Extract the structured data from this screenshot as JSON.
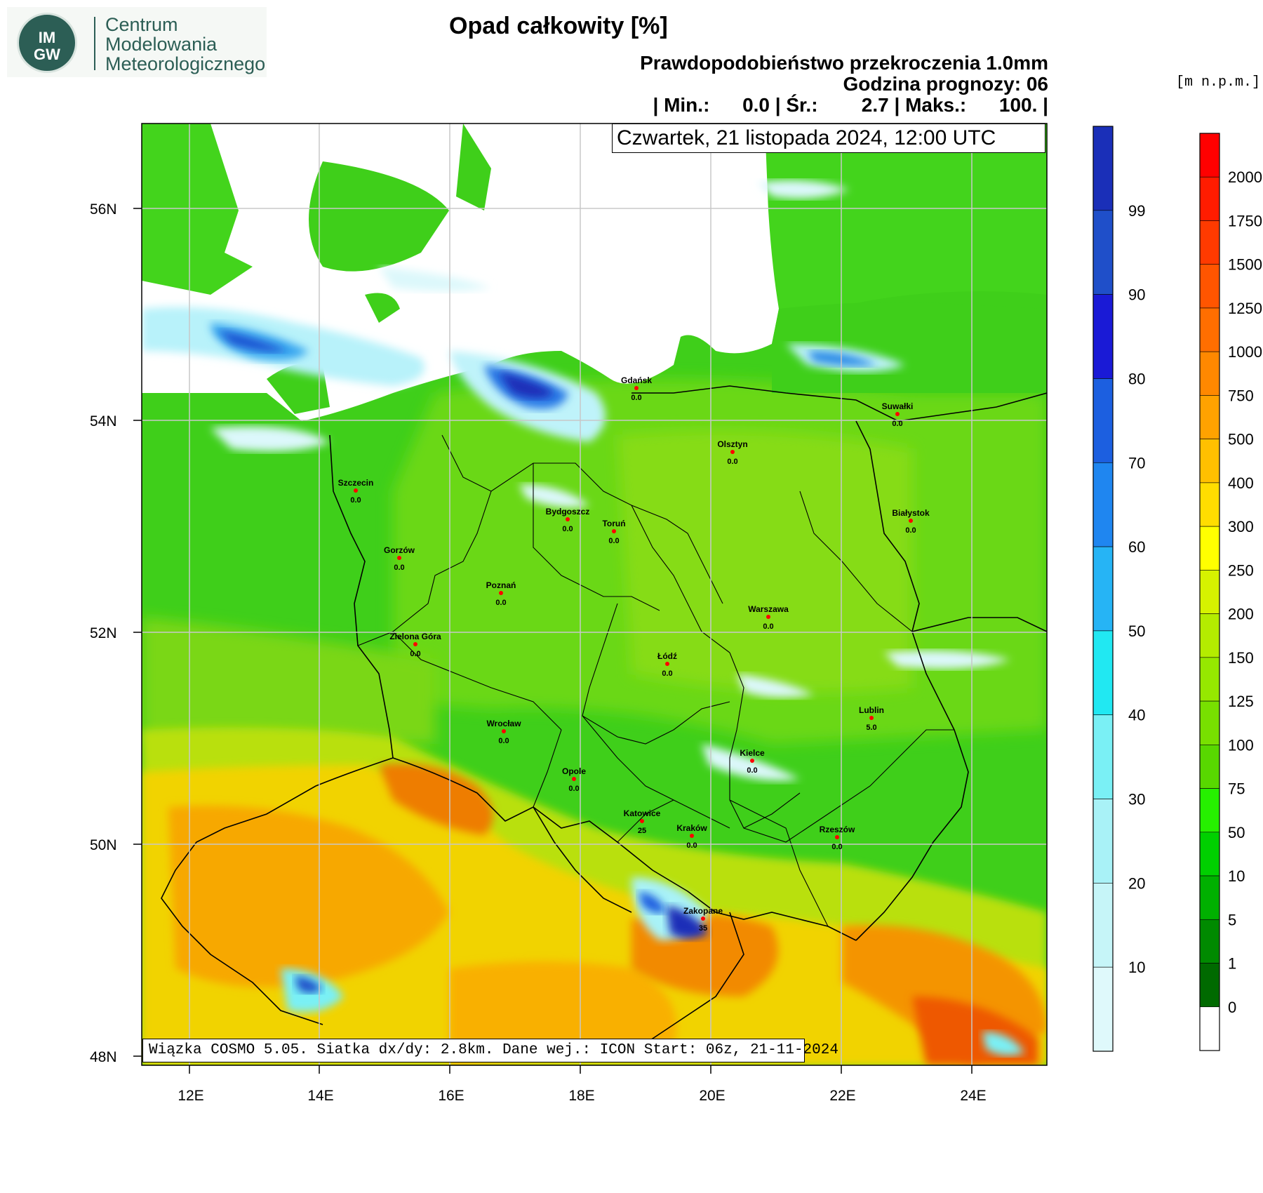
{
  "logo": {
    "initials_top": "IM",
    "initials_bottom": "GW",
    "line1": "Centrum",
    "line2": "Modelowania",
    "line3": "Meteorologicznego"
  },
  "header": {
    "title": "Opad całkowity [%]",
    "subtitle1": "Prawdopodobieństwo przekroczenia 1.0mm",
    "subtitle2": "Godzina prognozy: 06",
    "stats": "| Min.:      0.0 | Śr.:        2.7 | Maks.:      100. |",
    "date": "Czwartek, 21 listopada 2024, 12:00 UTC"
  },
  "footer": "Wiązka COSMO 5.05. Siatka dx/dy: 2.8km. Dane wej.: ICON Start: 06z, 21-11-2024",
  "elevation_unit": "[m n.p.m.]",
  "axes": {
    "lat_labels": [
      "56N",
      "54N",
      "52N",
      "50N",
      "48N"
    ],
    "lon_labels": [
      "12E",
      "14E",
      "16E",
      "18E",
      "20E",
      "22E",
      "24E"
    ]
  },
  "cities": [
    {
      "name": "Gdańsk",
      "value": "0.0"
    },
    {
      "name": "Suwałki",
      "value": "0.0"
    },
    {
      "name": "Olsztyn",
      "value": "0.0"
    },
    {
      "name": "Szczecin",
      "value": "0.0"
    },
    {
      "name": "Bydgoszcz",
      "value": "0.0"
    },
    {
      "name": "Toruń",
      "value": "0.0"
    },
    {
      "name": "Białystok",
      "value": "0.0"
    },
    {
      "name": "Gorzów",
      "value": "0.0"
    },
    {
      "name": "Poznań",
      "value": "0.0"
    },
    {
      "name": "Warszawa",
      "value": "0.0"
    },
    {
      "name": "Zielona Góra",
      "value": "0.0"
    },
    {
      "name": "Łódź",
      "value": "0.0"
    },
    {
      "name": "Lublin",
      "value": "5.0"
    },
    {
      "name": "Wrocław",
      "value": "0.0"
    },
    {
      "name": "Kielce",
      "value": "0.0"
    },
    {
      "name": "Opole",
      "value": "0.0"
    },
    {
      "name": "Katowice",
      "value": "25"
    },
    {
      "name": "Kraków",
      "value": "0.0"
    },
    {
      "name": "Rzeszów",
      "value": "0.0"
    },
    {
      "name": "Zakopane",
      "value": "35"
    }
  ],
  "probability_scale": {
    "labels": [
      "99",
      "90",
      "80",
      "70",
      "60",
      "50",
      "40",
      "30",
      "20",
      "10"
    ],
    "colors": [
      "#1a2fb8",
      "#1f4fc9",
      "#1a1ad6",
      "#1c5fe0",
      "#1f86f0",
      "#26b4f5",
      "#21e8f2",
      "#7af0f5",
      "#a9f2f7",
      "#c6f5f8",
      "#dff9fb"
    ]
  },
  "elevation_scale": {
    "labels": [
      "2000",
      "1750",
      "1500",
      "1250",
      "1000",
      "750",
      "500",
      "400",
      "300",
      "250",
      "200",
      "150",
      "125",
      "100",
      "75",
      "50",
      "10",
      "5",
      "1",
      "0"
    ],
    "colors": [
      "#ff0000",
      "#ff1c00",
      "#ff3a00",
      "#ff5500",
      "#ff6e00",
      "#ff8800",
      "#ffa200",
      "#ffc000",
      "#ffdd00",
      "#ffff00",
      "#d6f200",
      "#b4ec00",
      "#96e800",
      "#78e000",
      "#58d800",
      "#26f000",
      "#00d000",
      "#00b000",
      "#008a00",
      "#006a00",
      "#ffffff"
    ]
  }
}
